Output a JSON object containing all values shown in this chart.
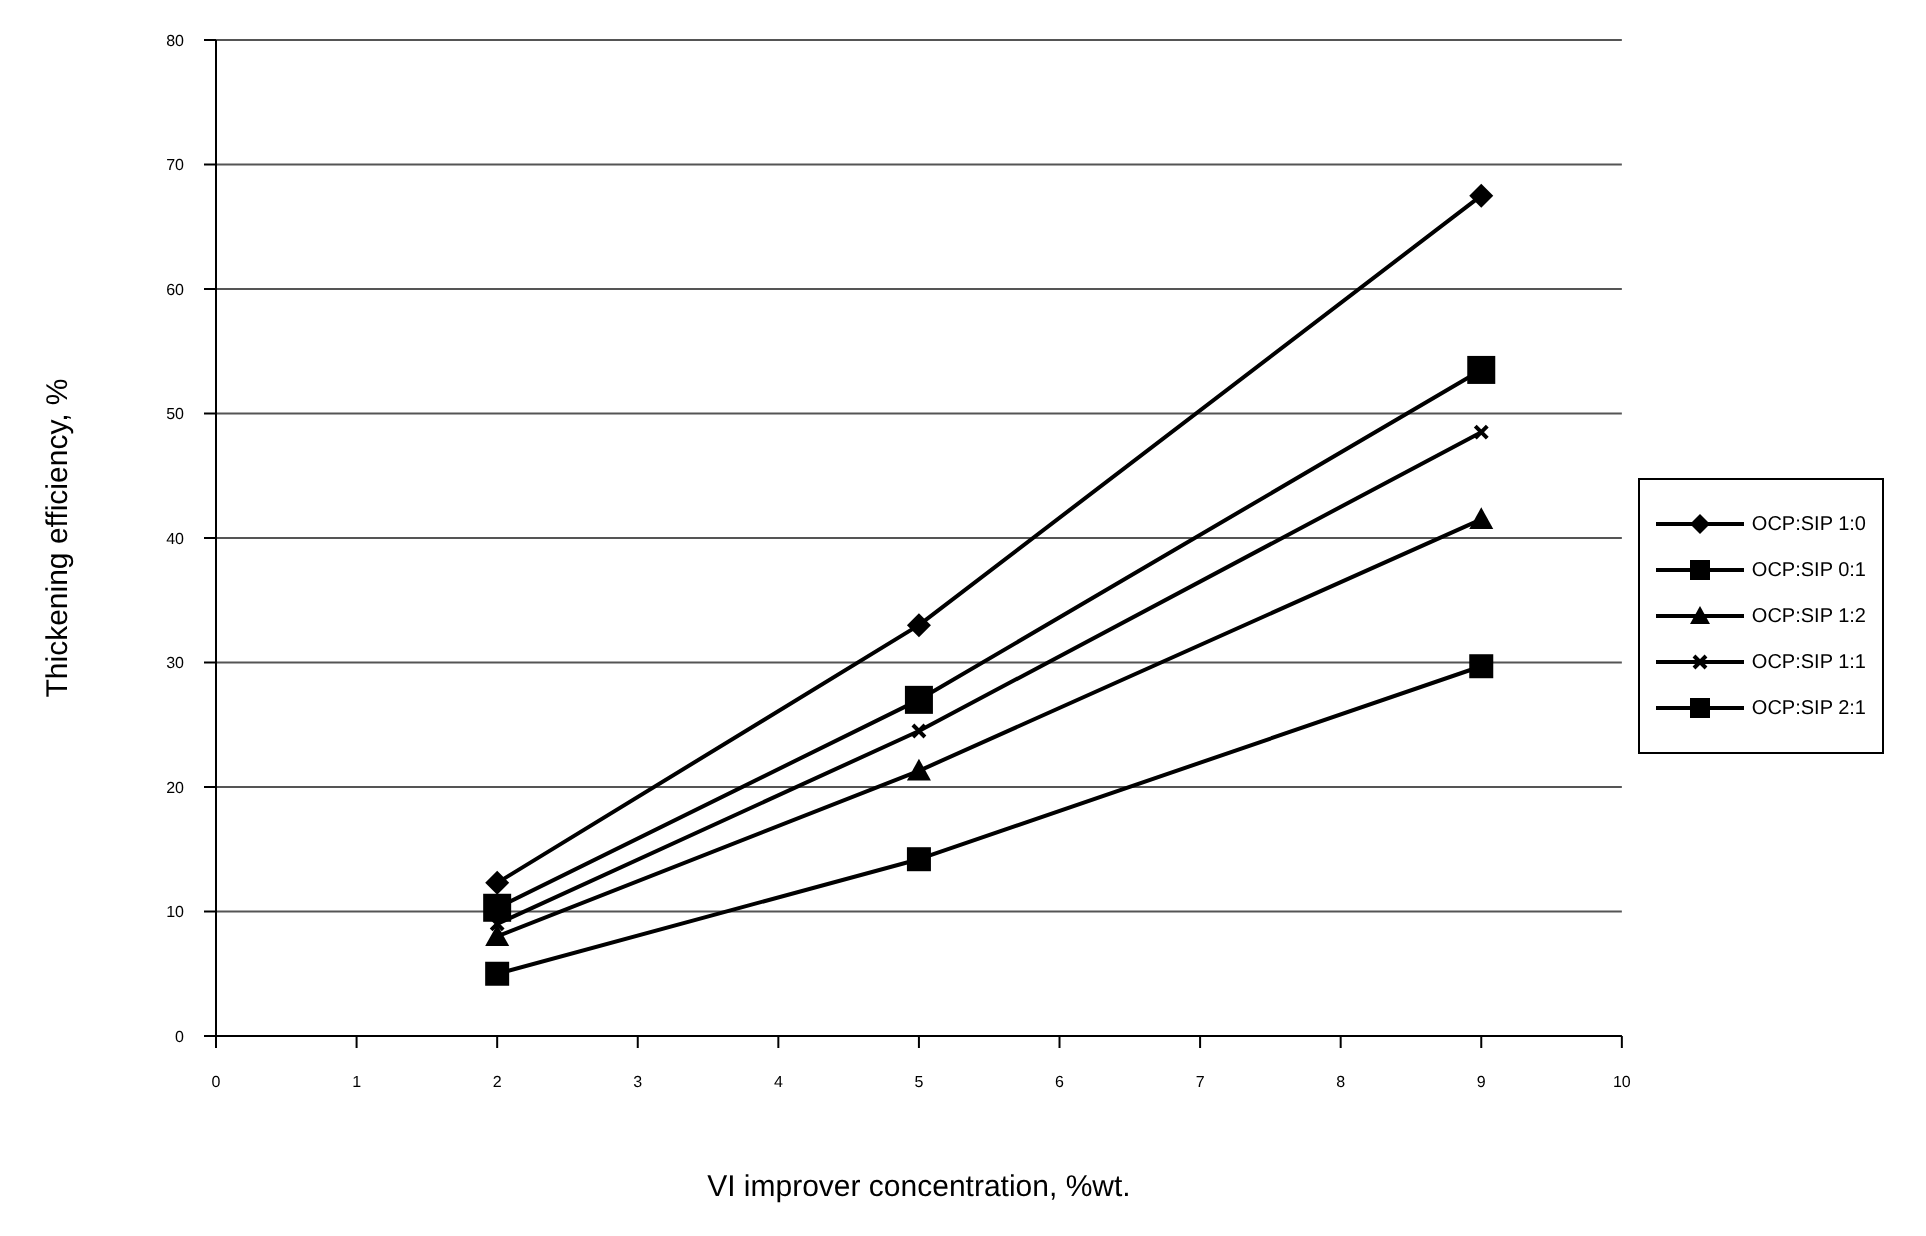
{
  "chart_data": {
    "type": "line",
    "xlabel": "VI improver concentration, %wt.",
    "ylabel": "Thickening efficiency, %",
    "x": [
      2,
      5,
      9
    ],
    "series": [
      {
        "name": "OCP:SIP 1:0",
        "color": "#000000",
        "marker": "diamond",
        "values": [
          12.3,
          33,
          67.5
        ]
      },
      {
        "name": "OCP:SIP 0:1",
        "color": "#000000",
        "marker": "square",
        "values": [
          5,
          14.2,
          29.7
        ]
      },
      {
        "name": "OCP:SIP 1:2",
        "color": "#000000",
        "marker": "triangle",
        "values": [
          8,
          21.3,
          41.5
        ]
      },
      {
        "name": "OCP:SIP 1:1",
        "color": "#000000",
        "marker": "cross",
        "values": [
          9,
          24.5,
          48.5
        ]
      },
      {
        "name": "OCP:SIP 2:1",
        "color": "#000000",
        "marker": "square",
        "values": [
          10.3,
          27,
          53.5
        ]
      }
    ],
    "xlim": [
      0,
      10
    ],
    "xticks": [
      0,
      1,
      2,
      3,
      4,
      5,
      6,
      7,
      8,
      9,
      10
    ],
    "ylim": [
      0,
      80
    ],
    "yticks": [
      0,
      10,
      20,
      30,
      40,
      50,
      60,
      70,
      80
    ],
    "grid": "y",
    "legend": "right",
    "line_style": "solid"
  }
}
